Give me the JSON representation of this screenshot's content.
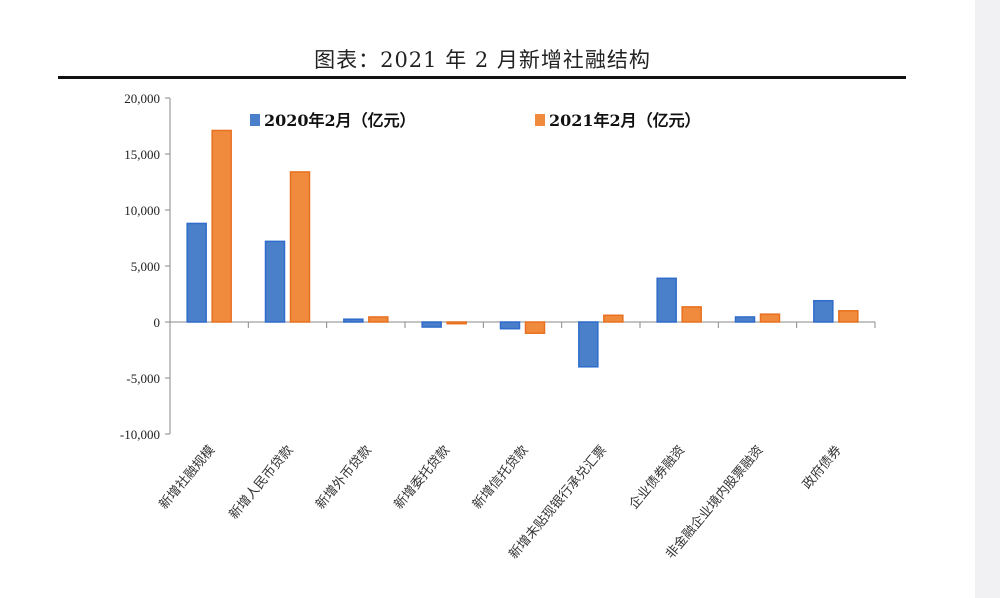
{
  "title": "图表：2021 年 2 月新增社融结构",
  "chart_data": {
    "type": "bar",
    "title": "图表：2021 年 2 月新增社融结构",
    "categories": [
      "新增社融规模",
      "新增人民币贷款",
      "新增外币贷款",
      "新增委托贷款",
      "新增信托贷款",
      "新增未贴现银行承兑汇票",
      "企业债券融资",
      "非金融企业境内股票融资",
      "政府债券"
    ],
    "series": [
      {
        "name": "2020年2月（亿元）",
        "color": "#4a7fc9",
        "values": [
          8800,
          7200,
          250,
          -450,
          -600,
          -4000,
          3900,
          450,
          1900
        ]
      },
      {
        "name": "2021年2月（亿元）",
        "color": "#f08a3c",
        "values": [
          17100,
          13400,
          450,
          -150,
          -1000,
          600,
          1350,
          700,
          1000
        ]
      }
    ],
    "ylim": [
      -10000,
      20000
    ],
    "yticks": [
      "20,000",
      "15,000",
      "10,000",
      "5,000",
      "0",
      "-5,000",
      "-10,000"
    ],
    "ytick_values": [
      20000,
      15000,
      10000,
      5000,
      0,
      -5000,
      -10000
    ],
    "legend": "top",
    "grid": false
  }
}
